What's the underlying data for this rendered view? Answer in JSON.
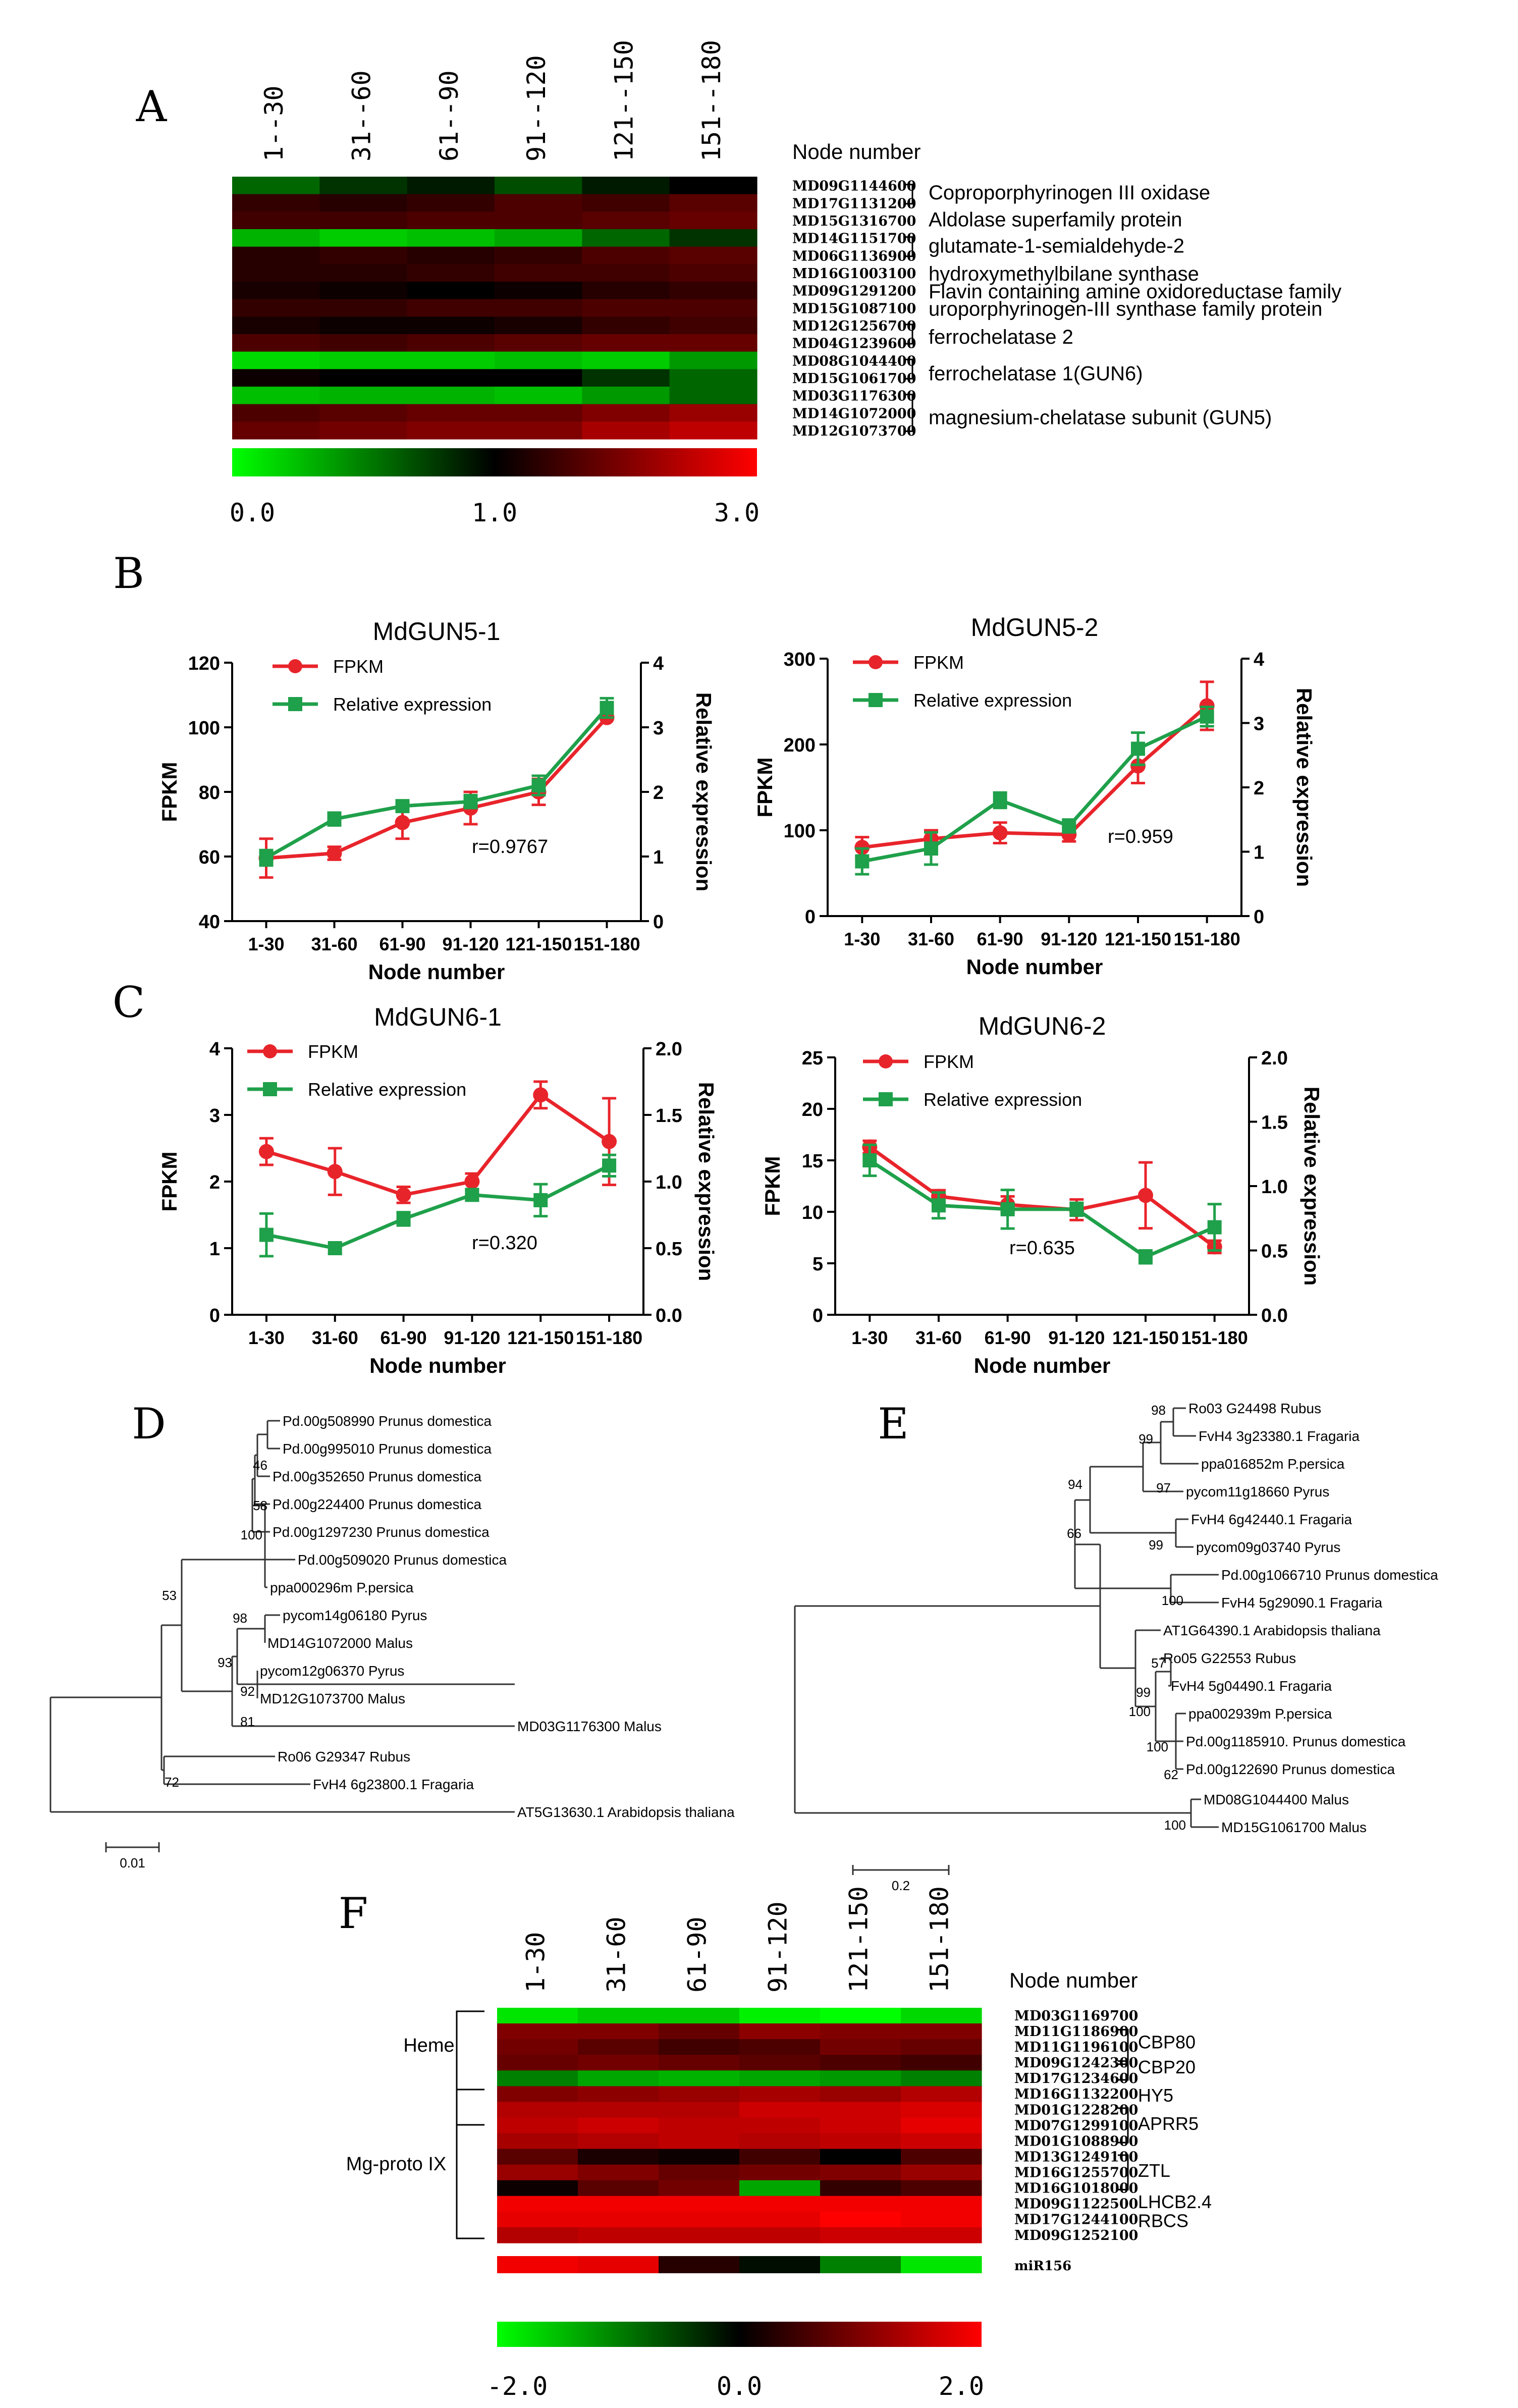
{
  "colors": {
    "red": "#e8242b",
    "green": "#1fa04a",
    "axis": "#000000"
  },
  "chart_data": [
    {
      "panel": "A",
      "type": "heatmap",
      "columns": [
        "1--30",
        "31--60",
        "61--90",
        "91--120",
        "121--150",
        "151--180"
      ],
      "column_axis_label": "Node number",
      "row_ids": [
        "MD09G1144600",
        "MD17G1131200",
        "MD15G1316700",
        "MD14G1151700",
        "MD06G1136900",
        "MD16G1003100",
        "MD09G1291200",
        "MD15G1087100",
        "MD12G1256700",
        "MD04G1239600",
        "MD08G1044400",
        "MD15G1061700",
        "MD03G1176300",
        "MD14G1072000",
        "MD12G1073700"
      ],
      "values": [
        [
          0.6,
          0.8,
          0.9,
          0.7,
          0.9,
          1.0
        ],
        [
          1.4,
          1.3,
          1.4,
          1.6,
          1.5,
          1.7
        ],
        [
          1.5,
          1.5,
          1.6,
          1.6,
          1.7,
          1.8
        ],
        [
          0.3,
          0.2,
          0.25,
          0.35,
          0.6,
          0.8
        ],
        [
          1.3,
          1.4,
          1.3,
          1.4,
          1.6,
          1.7
        ],
        [
          1.3,
          1.3,
          1.4,
          1.5,
          1.5,
          1.6
        ],
        [
          1.2,
          1.1,
          1.0,
          1.1,
          1.3,
          1.4
        ],
        [
          1.4,
          1.4,
          1.5,
          1.5,
          1.6,
          1.6
        ],
        [
          1.2,
          1.1,
          1.1,
          1.2,
          1.4,
          1.5
        ],
        [
          1.6,
          1.5,
          1.6,
          1.7,
          1.8,
          1.8
        ],
        [
          0.15,
          0.2,
          0.2,
          0.25,
          0.2,
          0.4
        ],
        [
          1.1,
          1.0,
          1.0,
          1.0,
          0.8,
          0.6
        ],
        [
          0.25,
          0.3,
          0.3,
          0.25,
          0.4,
          0.6
        ],
        [
          1.6,
          1.7,
          1.8,
          1.8,
          2.0,
          2.2
        ],
        [
          1.8,
          1.9,
          2.0,
          2.0,
          2.3,
          2.5
        ]
      ],
      "annotations": [
        "Coproporphyrinogen III oxidase",
        "Aldolase superfamily protein",
        "glutamate-1-semialdehyde-2",
        "hydroxymethylbilane synthase",
        "Flavin containing amine oxidoreductase family",
        "uroporphyrinogen-III synthase family protein",
        "ferrochelatase 2",
        "ferrochelatase 1(GUN6)",
        "magnesium-chelatase subunit (GUN5)"
      ],
      "scale": {
        "min_label": "0.0",
        "mid_label": "1.0",
        "max_label": "3.0",
        "min": 0,
        "mid": 1,
        "max": 3
      }
    },
    {
      "panel": "B",
      "type": "line",
      "title": "MdGUN5-1",
      "categories": [
        "1-30",
        "31-60",
        "61-90",
        "91-120",
        "121-150",
        "151-180"
      ],
      "xlabel": "Node number",
      "ylabel": "FPKM",
      "y2label": "Relative expression",
      "ylim": [
        40,
        120
      ],
      "yticks": [
        40,
        60,
        80,
        100,
        120
      ],
      "y2lim": [
        0,
        4
      ],
      "y2ticks": [
        0,
        1,
        2,
        3,
        4
      ],
      "series": [
        {
          "name": "FPKM",
          "axis": "left",
          "values": [
            59.5,
            61,
            70.5,
            75,
            80,
            103
          ],
          "errors": [
            6,
            2,
            5,
            5,
            4,
            0
          ]
        },
        {
          "name": "Relative expression",
          "axis": "right",
          "values": [
            0.98,
            1.58,
            1.78,
            1.85,
            2.1,
            3.3
          ],
          "errors": [
            0.12,
            0.1,
            0.08,
            0.1,
            0.15,
            0.15
          ]
        }
      ],
      "annotation": "r=0.9767"
    },
    {
      "panel": "B",
      "type": "line",
      "title": "MdGUN5-2",
      "categories": [
        "1-30",
        "31-60",
        "61-90",
        "91-120",
        "121-150",
        "151-180"
      ],
      "xlabel": "Node number",
      "ylabel": "FPKM",
      "y2label": "Relative expression",
      "ylim": [
        0,
        300
      ],
      "yticks": [
        0,
        100,
        200,
        300
      ],
      "y2lim": [
        0,
        4
      ],
      "y2ticks": [
        0,
        1,
        2,
        3,
        4
      ],
      "series": [
        {
          "name": "FPKM",
          "axis": "left",
          "values": [
            80,
            90,
            97,
            95,
            175,
            245
          ],
          "errors": [
            12,
            10,
            12,
            8,
            20,
            28
          ]
        },
        {
          "name": "Relative expression",
          "axis": "right",
          "values": [
            0.85,
            1.05,
            1.8,
            1.4,
            2.6,
            3.1
          ],
          "errors": [
            0.2,
            0.25,
            0.12,
            0.1,
            0.25,
            0.15
          ]
        }
      ],
      "annotation": "r=0.959"
    },
    {
      "panel": "C",
      "type": "line",
      "title": "MdGUN6-1",
      "categories": [
        "1-30",
        "31-60",
        "61-90",
        "91-120",
        "121-150",
        "151-180"
      ],
      "xlabel": "Node number",
      "ylabel": "FPKM",
      "y2label": "Relative expression",
      "ylim": [
        0,
        4
      ],
      "yticks": [
        0,
        1,
        2,
        3,
        4
      ],
      "y2lim": [
        0,
        2.0
      ],
      "y2ticks": [
        "0.0",
        "0.5",
        "1.0",
        "1.5",
        "2.0"
      ],
      "series": [
        {
          "name": "FPKM",
          "axis": "left",
          "values": [
            2.45,
            2.15,
            1.8,
            2.0,
            3.3,
            2.6
          ],
          "errors": [
            0.2,
            0.35,
            0.12,
            0.12,
            0.2,
            0.65
          ]
        },
        {
          "name": "Relative expression",
          "axis": "right",
          "values": [
            0.6,
            0.5,
            0.72,
            0.9,
            0.86,
            1.12
          ],
          "errors": [
            0.16,
            0.04,
            0.05,
            0.04,
            0.12,
            0.08
          ]
        }
      ],
      "annotation": "r=0.320"
    },
    {
      "panel": "C",
      "type": "line",
      "title": "MdGUN6-2",
      "categories": [
        "1-30",
        "31-60",
        "61-90",
        "91-120",
        "121-150",
        "151-180"
      ],
      "xlabel": "Node number",
      "ylabel": "FPKM",
      "y2label": "Relative expression",
      "ylim": [
        0,
        25
      ],
      "yticks": [
        0,
        5,
        10,
        15,
        20,
        25
      ],
      "y2lim": [
        0,
        2.0
      ],
      "y2ticks": [
        "0.0",
        "0.5",
        "1.0",
        "1.5",
        "2.0"
      ],
      "series": [
        {
          "name": "FPKM",
          "axis": "left",
          "values": [
            16.3,
            11.5,
            10.7,
            10.2,
            11.6,
            6.6
          ],
          "errors": [
            0.6,
            0.6,
            0.8,
            1.0,
            3.2,
            0.6
          ]
        },
        {
          "name": "Relative expression",
          "axis": "right",
          "values": [
            1.2,
            0.85,
            0.82,
            0.82,
            0.45,
            0.68
          ],
          "errors": [
            0.12,
            0.1,
            0.15,
            0.05,
            0.05,
            0.18
          ]
        }
      ],
      "annotation": "r=0.635"
    },
    {
      "panel": "D",
      "type": "tree",
      "leaves": [
        "Pd.00g508990 Prunus domestica",
        "Pd.00g995010 Prunus domestica",
        "Pd.00g352650 Prunus domestica",
        "Pd.00g224400 Prunus domestica",
        "Pd.00g1297230 Prunus domestica",
        "Pd.00g509020 Prunus domestica",
        "ppa000296m P.persica",
        "pycom14g06180 Pyrus",
        "MD14G1072000 Malus",
        "pycom12g06370 Pyrus",
        "MD12G1073700 Malus",
        "MD03G1176300 Malus",
        "Ro06 G29347 Rubus",
        "FvH4 6g23800.1 Fragaria",
        "AT5G13630.1 Arabidopsis thaliana"
      ],
      "bootstrap": [
        "46",
        "58",
        "100",
        "53",
        "98",
        "93",
        "92",
        "81",
        "72"
      ],
      "scale_label": "0.01"
    },
    {
      "panel": "E",
      "type": "tree",
      "leaves": [
        "Ro03 G24498 Rubus",
        "FvH4 3g23380.1 Fragaria",
        "ppa016852m P.persica",
        "pycom11g18660 Pyrus",
        "FvH4 6g42440.1 Fragaria",
        "pycom09g03740 Pyrus",
        "Pd.00g1066710 Prunus domestica",
        "FvH4 5g29090.1 Fragaria",
        "AT1G64390.1 Arabidopsis thaliana",
        "Ro05 G22553 Rubus",
        "FvH4 5g04490.1 Fragaria",
        "ppa002939m P.persica",
        "Pd.00g1185910. Prunus domestica",
        "Pd.00g122690 Prunus domestica",
        "MD08G1044400 Malus",
        "MD15G1061700 Malus"
      ],
      "bootstrap": [
        "98",
        "99",
        "94",
        "97",
        "99",
        "66",
        "100",
        "57",
        "99",
        "100",
        "100",
        "62",
        "100"
      ],
      "scale_label": "0.2"
    },
    {
      "panel": "F",
      "type": "heatmap",
      "columns": [
        "1-30",
        "31-60",
        "61-90",
        "91-120",
        "121-150",
        "151-180"
      ],
      "column_axis_label": "Node number",
      "row_ids": [
        "MD03G1169700",
        "MD11G1186900",
        "MD11G1196100",
        "MD09G1242300",
        "MD17G1234600",
        "MD16G1132200",
        "MD01G1228200",
        "MD07G1299100",
        "MD01G1088900",
        "MD13G1249100",
        "MD16G1255700",
        "MD16G1018000",
        "MD09G1122500",
        "MD17G1244100",
        "MD09G1252100"
      ],
      "values": [
        [
          -1.8,
          -1.6,
          -1.6,
          -1.9,
          -2.0,
          -1.7
        ],
        [
          1.0,
          1.0,
          0.8,
          1.1,
          1.0,
          1.0
        ],
        [
          0.9,
          0.7,
          0.5,
          0.6,
          0.9,
          0.8
        ],
        [
          0.8,
          0.9,
          0.8,
          0.7,
          0.6,
          0.5
        ],
        [
          -1.0,
          -1.3,
          -1.4,
          -1.3,
          -1.2,
          -1.0
        ],
        [
          1.0,
          1.1,
          1.2,
          1.3,
          1.2,
          1.4
        ],
        [
          1.4,
          1.4,
          1.4,
          1.6,
          1.6,
          1.7
        ],
        [
          1.5,
          1.6,
          1.5,
          1.5,
          1.6,
          1.8
        ],
        [
          1.3,
          1.4,
          1.5,
          1.4,
          1.5,
          1.6
        ],
        [
          0.7,
          0.2,
          0.1,
          0.5,
          0.0,
          0.6
        ],
        [
          1.2,
          1.0,
          0.8,
          0.9,
          1.0,
          1.2
        ],
        [
          0.1,
          0.7,
          0.9,
          -1.3,
          0.4,
          0.6
        ],
        [
          1.9,
          1.9,
          1.9,
          1.9,
          1.9,
          1.9
        ],
        [
          1.8,
          1.8,
          1.8,
          1.8,
          2.0,
          1.9
        ],
        [
          1.4,
          1.5,
          1.5,
          1.5,
          1.6,
          1.6
        ]
      ],
      "groups": [
        "Heme",
        "Mg-proto IX"
      ],
      "gene_labels": [
        "CBP80",
        "CBP20",
        "HY5",
        "APRR5",
        "ZTL",
        "LHCB2.4",
        "RBCS"
      ],
      "mirna_label": "miR156",
      "mirna_values": [
        1.9,
        1.8,
        0.3,
        -0.1,
        -1.0,
        -1.8
      ],
      "scale": {
        "min_label": "-2.0",
        "mid_label": "0.0",
        "max_label": "2.0",
        "min": -2,
        "mid": 0,
        "max": 2
      }
    }
  ],
  "panel_letters": {
    "A": "A",
    "B": "B",
    "C": "C",
    "D": "D",
    "E": "E",
    "F": "F"
  },
  "legend": {
    "fpkm": "FPKM",
    "rel": "Relative expression"
  }
}
